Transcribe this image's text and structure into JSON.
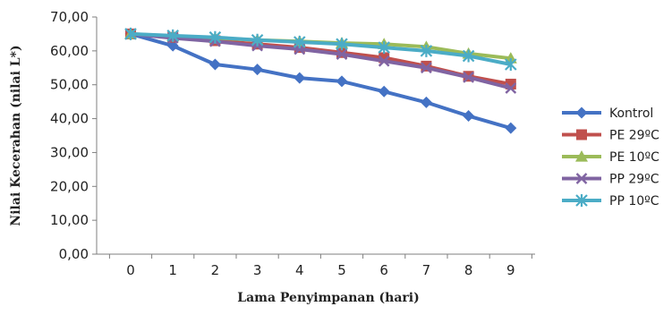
{
  "chart_data": {
    "type": "line",
    "xlabel": "Lama Penyimpanan  (hari)",
    "ylabel": "Nilai Kecerahan  (nilai L*)",
    "x": [
      0,
      1,
      2,
      3,
      4,
      5,
      6,
      7,
      8,
      9
    ],
    "x_tick_labels": [
      "0",
      "1",
      "2",
      "3",
      "4",
      "5",
      "6",
      "7",
      "8",
      "9"
    ],
    "y_tick_labels": [
      "0,00",
      "10,00",
      "20,00",
      "30,00",
      "40,00",
      "50,00",
      "60,00",
      "70,00"
    ],
    "ylim": [
      0,
      70
    ],
    "grid": false,
    "legend_position": "right",
    "series": [
      {
        "name": "Kontrol",
        "marker": "diamond",
        "color": "#4472C4",
        "values": [
          65.0,
          61.5,
          56.0,
          54.5,
          52.0,
          51.0,
          48.0,
          44.8,
          40.8,
          37.2
        ]
      },
      {
        "name": "PE 29ºC",
        "marker": "square",
        "color": "#C0504D",
        "values": [
          65.0,
          64.0,
          63.0,
          62.0,
          61.0,
          59.5,
          58.0,
          55.5,
          52.5,
          50.2
        ]
      },
      {
        "name": "PE 10ºC",
        "marker": "triangle",
        "color": "#9BBB59",
        "values": [
          65.0,
          64.3,
          63.8,
          63.2,
          62.8,
          62.3,
          62.0,
          61.2,
          59.2,
          57.8
        ]
      },
      {
        "name": "PP 29ºC",
        "marker": "x",
        "color": "#8064A2",
        "values": [
          65.0,
          63.8,
          62.8,
          61.5,
          60.5,
          59.0,
          57.0,
          55.0,
          52.2,
          49.0
        ]
      },
      {
        "name": "PP 10ºC",
        "marker": "star",
        "color": "#4BACC6",
        "values": [
          65.0,
          64.5,
          64.0,
          63.2,
          62.6,
          62.0,
          61.0,
          60.0,
          58.5,
          56.0
        ]
      }
    ]
  }
}
